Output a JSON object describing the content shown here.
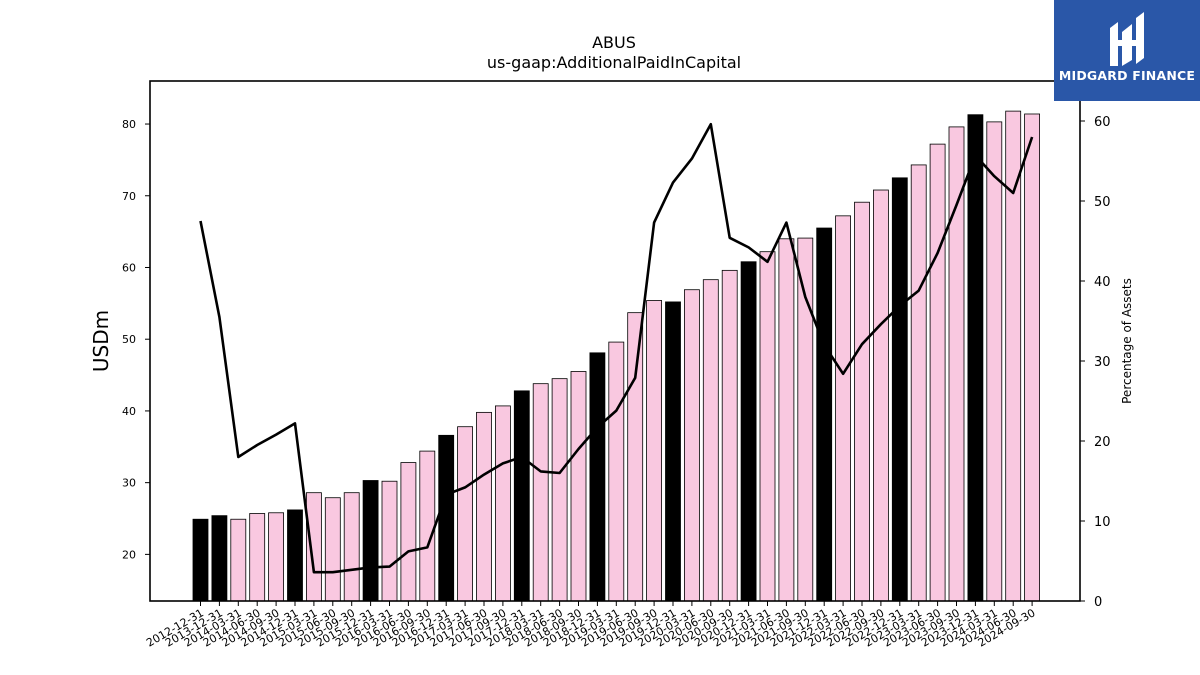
{
  "chart_data": {
    "type": "bar",
    "title": "ABUS",
    "subtitle": "us-gaap:AdditionalPaidInCapital",
    "ylabel": "USDm",
    "y2label": "Percentage of Assets",
    "ylim": [
      13.5,
      86
    ],
    "y2lim": [
      0,
      65
    ],
    "yticks": [
      20,
      30,
      40,
      50,
      60,
      70,
      80
    ],
    "y2ticks": [
      0,
      10,
      20,
      30,
      40,
      50,
      60
    ],
    "categories": [
      "2012-12-31",
      "2013-12-31",
      "2014-03-31",
      "2014-06-30",
      "2014-09-30",
      "2014-12-31",
      "2015-03-31",
      "2015-06-30",
      "2015-09-30",
      "2015-12-31",
      "2016-03-31",
      "2016-06-30",
      "2016-09-30",
      "2016-12-31",
      "2017-03-31",
      "2017-06-30",
      "2017-09-30",
      "2017-12-31",
      "2018-03-31",
      "2018-06-30",
      "2018-09-30",
      "2018-12-31",
      "2019-03-31",
      "2019-06-30",
      "2019-09-30",
      "2019-12-31",
      "2020-03-31",
      "2020-06-30",
      "2020-09-30",
      "2020-12-31",
      "2021-03-31",
      "2021-06-30",
      "2021-09-30",
      "2021-12-31",
      "2022-03-31",
      "2022-06-30",
      "2022-09-30",
      "2022-12-31",
      "2023-03-31",
      "2023-06-30",
      "2023-09-30",
      "2023-12-31",
      "2024-03-31",
      "2024-06-30",
      "2024-09-30"
    ],
    "series": [
      {
        "kind": "bar",
        "axis": "left",
        "values": [
          24.9,
          25.4,
          24.9,
          25.7,
          25.8,
          26.2,
          28.6,
          27.9,
          28.6,
          30.3,
          30.2,
          32.8,
          34.4,
          36.6,
          37.8,
          39.8,
          40.7,
          42.8,
          43.8,
          44.5,
          45.5,
          48.1,
          49.6,
          53.7,
          55.4,
          55.2,
          56.9,
          58.3,
          59.6,
          60.8,
          62.2,
          64.0,
          64.1,
          65.5,
          67.2,
          69.1,
          70.8,
          72.5,
          74.3,
          77.2,
          79.6,
          81.3,
          80.3,
          81.8,
          81.4
        ],
        "highlight": [
          true,
          true,
          false,
          false,
          false,
          true,
          false,
          false,
          false,
          true,
          false,
          false,
          false,
          true,
          false,
          false,
          false,
          true,
          false,
          false,
          false,
          true,
          false,
          false,
          false,
          true,
          false,
          false,
          false,
          true,
          false,
          false,
          false,
          true,
          false,
          false,
          false,
          true,
          false,
          false,
          false,
          true,
          false,
          false,
          false
        ],
        "color": "#f9c8e0",
        "highlight_color": "#000000"
      },
      {
        "kind": "line",
        "axis": "right",
        "color": "#000000",
        "values": [
          47.5,
          35.5,
          18.0,
          19.5,
          20.8,
          22.2,
          3.6,
          3.6,
          3.9,
          4.2,
          4.3,
          6.2,
          6.7,
          13.3,
          14.2,
          15.8,
          17.2,
          18.0,
          16.2,
          16.0,
          19.0,
          21.7,
          23.8,
          27.9,
          47.3,
          52.3,
          55.3,
          59.6,
          45.4,
          44.2,
          42.4,
          47.3,
          38.0,
          32.0,
          28.4,
          32.1,
          34.6,
          36.9,
          38.8,
          43.5,
          49.5,
          55.7,
          53.1,
          51.0,
          58.0
        ]
      }
    ]
  },
  "logo": {
    "text": "MIDGARD FINANCE",
    "bg_color": "#2a57a8"
  }
}
